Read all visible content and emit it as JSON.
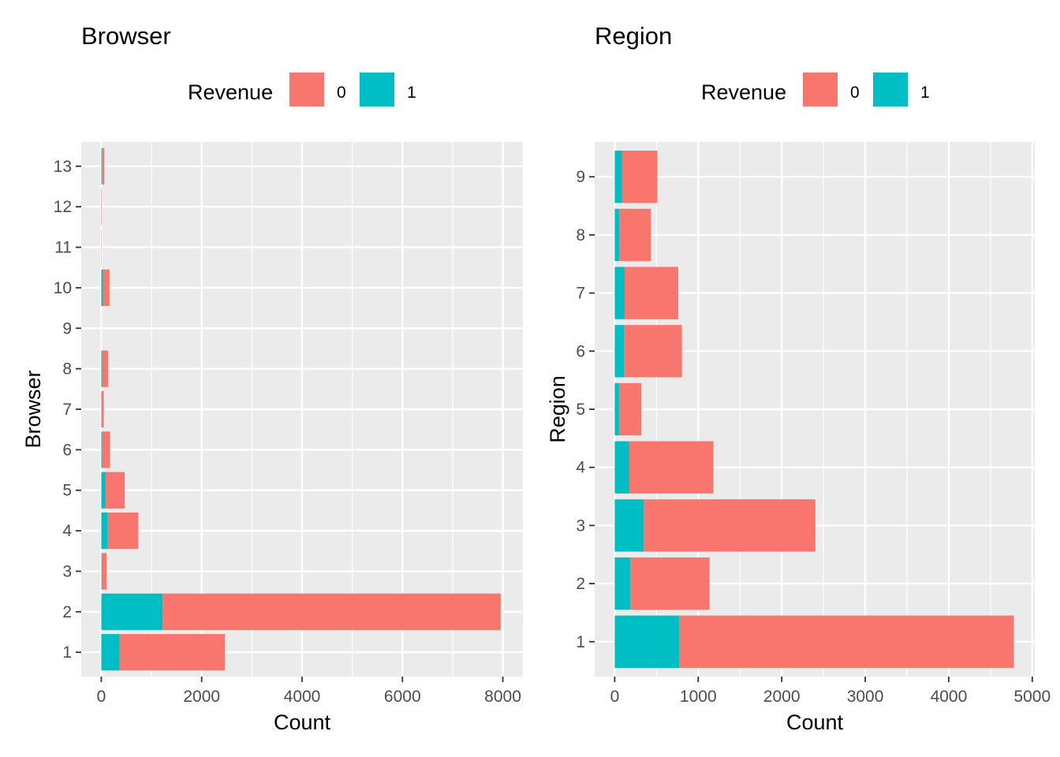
{
  "chart_data": [
    {
      "type": "bar",
      "orientation": "horizontal",
      "stacked": true,
      "title": "Browser",
      "xlabel": "Count",
      "ylabel": "Browser",
      "legend": {
        "title": "Revenue",
        "position": "top",
        "entries": [
          "0",
          "1"
        ]
      },
      "grid": true,
      "xlim": [
        -400,
        8400
      ],
      "xticks": [
        0,
        2000,
        4000,
        6000,
        8000
      ],
      "xtick_labels": [
        "0",
        "2000",
        "4000",
        "6000",
        "8000"
      ],
      "categories": [
        "1",
        "2",
        "3",
        "4",
        "5",
        "6",
        "7",
        "8",
        "9",
        "10",
        "11",
        "12",
        "13"
      ],
      "series": [
        {
          "name": "1",
          "color": "#00BFC4",
          "values": [
            365,
            1223,
            5,
            130,
            86,
            20,
            1,
            22,
            0,
            32,
            1,
            0,
            12
          ]
        },
        {
          "name": "0",
          "color": "#F8766D",
          "values": [
            2097,
            6734,
            100,
            606,
            381,
            154,
            48,
            113,
            1,
            131,
            5,
            10,
            49
          ]
        }
      ]
    },
    {
      "type": "bar",
      "orientation": "horizontal",
      "stacked": true,
      "title": "Region",
      "xlabel": "Count",
      "ylabel": "Region",
      "legend": {
        "title": "Revenue",
        "position": "top",
        "entries": [
          "0",
          "1"
        ]
      },
      "grid": true,
      "xlim": [
        -240,
        5030
      ],
      "xticks": [
        0,
        1000,
        2000,
        3000,
        4000,
        5000
      ],
      "xtick_labels": [
        "0",
        "1000",
        "2000",
        "3000",
        "4000",
        "5000"
      ],
      "categories": [
        "1",
        "2",
        "3",
        "4",
        "5",
        "6",
        "7",
        "8",
        "9"
      ],
      "series": [
        {
          "name": "1",
          "color": "#00BFC4",
          "values": [
            771,
            188,
            349,
            175,
            52,
            112,
            119,
            56,
            86
          ]
        },
        {
          "name": "0",
          "color": "#F8766D",
          "values": [
            4009,
            948,
            2054,
            1007,
            266,
            693,
            642,
            378,
            425
          ]
        }
      ]
    }
  ]
}
